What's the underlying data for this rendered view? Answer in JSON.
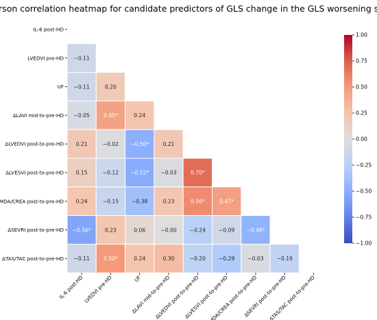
{
  "chart_data": {
    "type": "heatmap",
    "title": "Pearson correlation heatmap for candidate predictors of GLS change in the GLS worsening subgroup",
    "labels": [
      "IL-6 post-HD",
      "LVEDVI pre-HD",
      "UF",
      "ΔLAVI mid-to-pre-HD",
      "ΔLVEDVI post-to-pre-HD",
      "ΔLVESVI post-to-pre-HD",
      "ΔMDA/CREA post-to-pre-HD",
      "ΔSEVRI post-to-pre-HD",
      "ΔTAS/TAC post-to-pre-HD"
    ],
    "lower_triangle": [
      [],
      [
        -0.11
      ],
      [
        -0.11,
        0.2
      ],
      [
        -0.05,
        0.45,
        0.24
      ],
      [
        0.21,
        -0.02,
        -0.5,
        0.21
      ],
      [
        0.15,
        -0.12,
        -0.52,
        -0.03,
        0.7
      ],
      [
        0.24,
        -0.15,
        -0.38,
        0.23,
        0.56,
        0.47
      ],
      [
        -0.56,
        0.23,
        0.06,
        -0.0,
        -0.24,
        -0.09,
        -0.48
      ],
      [
        -0.11,
        0.5,
        0.24,
        0.3,
        -0.2,
        -0.29,
        -0.03,
        -0.19
      ]
    ],
    "cell_labels": [
      [],
      [
        "−0.11"
      ],
      [
        "−0.11",
        "0.20"
      ],
      [
        "−0.05",
        "0.45*",
        "0.24"
      ],
      [
        "0.21",
        "−0.02",
        "−0.50*",
        "0.21"
      ],
      [
        "0.15",
        "−0.12",
        "−0.52*",
        "−0.03",
        "0.70*"
      ],
      [
        "0.24",
        "−0.15",
        "−0.38",
        "0.23",
        "0.56*",
        "0.47*"
      ],
      [
        "−0.56*",
        "0.23",
        "0.06",
        "−0.00",
        "−0.24",
        "−0.09",
        "−0.48*"
      ],
      [
        "−0.11",
        "0.50*",
        "0.24",
        "0.30",
        "−0.20",
        "−0.29",
        "−0.03",
        "−0.19"
      ]
    ],
    "colorbar": {
      "min": -1.0,
      "max": 1.0,
      "ticks": [
        1.0,
        0.75,
        0.5,
        0.25,
        0.0,
        -0.25,
        -0.5,
        -0.75,
        -1.0
      ],
      "tick_labels": [
        "1.00",
        "0.75",
        "0.50",
        "0.25",
        "0.00",
        "−0.25",
        "−0.50",
        "−0.75",
        "−1.00"
      ],
      "colormap": "coolwarm"
    }
  }
}
